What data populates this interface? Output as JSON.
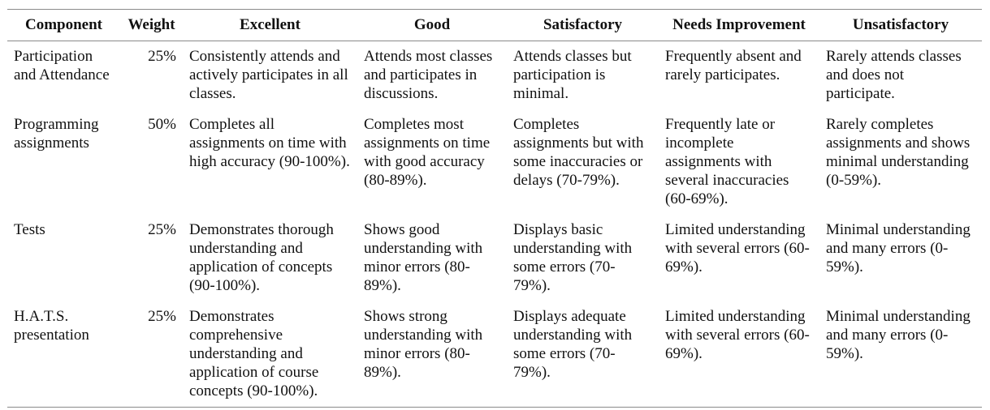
{
  "headers": [
    "Component",
    "Weight",
    "Excellent",
    "Good",
    "Satisfactory",
    "Needs Improvement",
    "Unsatisfactory"
  ],
  "rows": [
    {
      "component": "Participation and Attendance",
      "weight": "25%",
      "excellent": "Consistently attends and actively participates in all classes.",
      "good": "Attends most classes and participates in discussions.",
      "satisfactory": "Attends classes but participation is minimal.",
      "needs_improvement": "Frequently absent and rarely participates.",
      "unsatisfactory": "Rarely attends classes and does not participate."
    },
    {
      "component": "Programming assignments",
      "weight": "50%",
      "excellent": "Completes all assignments on time with high accuracy (90-100%).",
      "good": "Completes most assignments on time with good accuracy (80-89%).",
      "satisfactory": "Completes assignments but with some inaccuracies or delays (70-79%).",
      "needs_improvement": "Frequently late or incomplete assignments with several inaccuracies (60-69%).",
      "unsatisfactory": "Rarely completes assignments and shows minimal understanding (0-59%)."
    },
    {
      "component": "Tests",
      "weight": "25%",
      "excellent": "Demonstrates thorough understanding and application of concepts (90-100%).",
      "good": "Shows good understanding with minor errors (80-89%).",
      "satisfactory": "Displays basic understanding with some errors (70-79%).",
      "needs_improvement": "Limited understanding with several errors (60-69%).",
      "unsatisfactory": "Minimal understanding and many errors (0-59%)."
    },
    {
      "component": "H.A.T.S. presentation",
      "weight": "25%",
      "excellent": "Demonstrates comprehensive understanding and application of course concepts (90-100%).",
      "good": "Shows strong understanding with minor errors (80-89%).",
      "satisfactory": "Displays adequate understanding with some errors (70-79%).",
      "needs_improvement": "Limited understanding with several errors (60-69%).",
      "unsatisfactory": "Minimal understanding and many errors (0-59%)."
    }
  ]
}
